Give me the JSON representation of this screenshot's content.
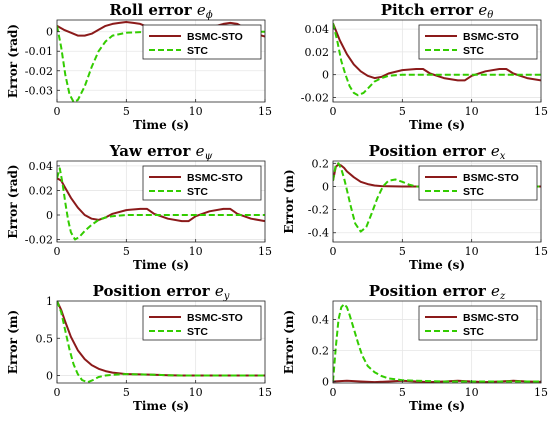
{
  "colors": {
    "bsmc": "#8b1a1a",
    "stc": "#33cc00",
    "grid": "#e6e6e6",
    "axis": "#262626"
  },
  "chart_data": [
    {
      "type": "line",
      "title": "Roll error",
      "title_sub": "e",
      "title_subscript": "ϕ",
      "xlabel": "Time (s)",
      "ylabel": "Error (rad)",
      "xlim": [
        0,
        15
      ],
      "ylim": [
        -0.036,
        0.006
      ],
      "xticks": [
        0,
        5,
        10,
        15
      ],
      "yticks": [
        0,
        -0.01,
        -0.02,
        -0.03
      ],
      "ytick_labels": [
        "0",
        "-0.01",
        "-0.02",
        "-0.03"
      ],
      "grid": true,
      "legend_position": "top-right",
      "series": [
        {
          "name": "BSMC-STO",
          "style": "solid",
          "x": [
            0,
            0.5,
            1,
            1.5,
            2,
            2.5,
            3,
            3.5,
            4,
            4.5,
            5,
            5.5,
            6,
            6.5,
            7,
            7.5,
            8,
            8.5,
            9,
            9.5,
            10,
            10.5,
            11,
            11.5,
            12,
            12.5,
            13,
            13.5,
            14,
            14.5,
            15
          ],
          "values": [
            0.003,
            0.001,
            -0.0005,
            -0.002,
            -0.002,
            -0.001,
            0.001,
            0.003,
            0.004,
            0.0045,
            0.005,
            0.0045,
            0.004,
            0.0025,
            0.001,
            -0.0005,
            -0.0015,
            -0.002,
            -0.0025,
            -0.0025,
            -0.002,
            0,
            0.002,
            0.003,
            0.004,
            0.0045,
            0.004,
            0.002,
            0,
            -0.0015,
            -0.0025
          ]
        },
        {
          "name": "STC",
          "style": "dashed",
          "x": [
            0,
            0.3,
            0.6,
            0.9,
            1.2,
            1.5,
            2,
            2.5,
            3,
            3.5,
            4,
            5,
            6,
            7,
            8,
            9,
            10,
            11,
            12,
            13,
            14,
            15
          ],
          "values": [
            0.003,
            -0.008,
            -0.022,
            -0.032,
            -0.036,
            -0.035,
            -0.028,
            -0.018,
            -0.01,
            -0.005,
            -0.002,
            -0.0005,
            -0.0002,
            0,
            0,
            0,
            0,
            0,
            0,
            0,
            0,
            0
          ]
        }
      ]
    },
    {
      "type": "line",
      "title": "Pitch error",
      "title_sub": "e",
      "title_subscript": "θ",
      "xlabel": "Time (s)",
      "ylabel": "",
      "xlim": [
        0,
        15
      ],
      "ylim": [
        -0.024,
        0.048
      ],
      "xticks": [
        0,
        5,
        10,
        15
      ],
      "yticks": [
        0.04,
        0.02,
        0,
        -0.02
      ],
      "ytick_labels": [
        "0.04",
        "0.02",
        "0",
        "-0.02"
      ],
      "grid": true,
      "legend_position": "top-right",
      "series": [
        {
          "name": "BSMC-STO",
          "style": "solid",
          "x": [
            0,
            0.5,
            1,
            1.5,
            2,
            2.5,
            3,
            3.5,
            4,
            5,
            6,
            6.5,
            7,
            8,
            9,
            9.5,
            10,
            11,
            12,
            12.5,
            13,
            14,
            15
          ],
          "values": [
            0.045,
            0.03,
            0.018,
            0.009,
            0.003,
            -0.001,
            -0.003,
            -0.002,
            0.001,
            0.004,
            0.005,
            0.005,
            0.001,
            -0.003,
            -0.005,
            -0.005,
            -0.001,
            0.003,
            0.005,
            0.005,
            0.001,
            -0.003,
            -0.005
          ]
        },
        {
          "name": "STC",
          "style": "dashed",
          "x": [
            0,
            0.3,
            0.6,
            0.9,
            1.2,
            1.5,
            1.8,
            2.2,
            2.6,
            3,
            3.5,
            4,
            5,
            6,
            7,
            8,
            9,
            10,
            11,
            12,
            13,
            14,
            15
          ],
          "values": [
            0.045,
            0.03,
            0.012,
            0,
            -0.01,
            -0.016,
            -0.018,
            -0.016,
            -0.011,
            -0.006,
            -0.003,
            -0.001,
            0,
            0,
            0,
            0,
            0,
            0,
            0,
            0,
            0,
            0,
            0
          ]
        }
      ]
    },
    {
      "type": "line",
      "title": "Yaw error",
      "title_sub": "e",
      "title_subscript": "ψ",
      "xlabel": "Time (s)",
      "ylabel": "Error (rad)",
      "xlim": [
        0,
        15
      ],
      "ylim": [
        -0.022,
        0.044
      ],
      "xticks": [
        0,
        5,
        10,
        15
      ],
      "yticks": [
        0.04,
        0.02,
        0,
        -0.02
      ],
      "ytick_labels": [
        "0.04",
        "0.02",
        "0",
        "-0.02"
      ],
      "grid": true,
      "legend_position": "top-right",
      "series": [
        {
          "name": "BSMC-STO",
          "style": "solid",
          "x": [
            0,
            0.3,
            0.6,
            1,
            1.5,
            2,
            2.5,
            3,
            3.5,
            4,
            5,
            6,
            6.5,
            7,
            8,
            9,
            9.5,
            10,
            11,
            12,
            12.5,
            13,
            14,
            15
          ],
          "values": [
            0.03,
            0.028,
            0.022,
            0.014,
            0.006,
            0,
            -0.003,
            -0.004,
            -0.002,
            0.001,
            0.004,
            0.005,
            0.005,
            0.001,
            -0.003,
            -0.005,
            -0.005,
            -0.001,
            0.003,
            0.005,
            0.005,
            0.001,
            -0.003,
            -0.005
          ]
        },
        {
          "name": "STC",
          "style": "dashed",
          "x": [
            0,
            0.2,
            0.4,
            0.6,
            0.8,
            1,
            1.3,
            1.6,
            2,
            2.5,
            3,
            3.5,
            4,
            5,
            6,
            7,
            8,
            9,
            10,
            11,
            12,
            13,
            14,
            15
          ],
          "values": [
            0.03,
            0.038,
            0.026,
            0.01,
            -0.004,
            -0.014,
            -0.02,
            -0.018,
            -0.013,
            -0.008,
            -0.004,
            -0.002,
            -0.001,
            0,
            0,
            0,
            0,
            0,
            0,
            0,
            0,
            0,
            0,
            0
          ]
        }
      ]
    },
    {
      "type": "line",
      "title": "Position error",
      "title_sub": "e",
      "title_subscript": "x",
      "xlabel": "Time (s)",
      "ylabel": "Error (m)",
      "xlim": [
        0,
        15
      ],
      "ylim": [
        -0.48,
        0.22
      ],
      "xticks": [
        0,
        5,
        10,
        15
      ],
      "yticks": [
        0.2,
        0,
        -0.2,
        -0.4
      ],
      "ytick_labels": [
        "0.2",
        "0",
        "-0.2",
        "-0.4"
      ],
      "grid": true,
      "legend_position": "top-right",
      "series": [
        {
          "name": "BSMC-STO",
          "style": "solid",
          "x": [
            0,
            0.2,
            0.4,
            0.6,
            0.8,
            1,
            1.5,
            2,
            2.5,
            3,
            3.5,
            4,
            5,
            6,
            7,
            8,
            9,
            10,
            11,
            12,
            13,
            14,
            15
          ],
          "values": [
            0.05,
            0.17,
            0.19,
            0.18,
            0.16,
            0.13,
            0.08,
            0.04,
            0.02,
            0.008,
            0.003,
            0.001,
            0,
            0,
            0,
            0,
            0,
            0,
            0,
            0,
            0,
            0,
            0
          ]
        },
        {
          "name": "STC",
          "style": "dashed",
          "x": [
            0,
            0.2,
            0.4,
            0.6,
            0.8,
            1,
            1.3,
            1.6,
            2,
            2.4,
            2.8,
            3.2,
            3.6,
            4,
            4.5,
            5,
            5.5,
            6,
            7,
            8,
            9,
            10,
            11,
            12,
            13,
            14,
            15
          ],
          "values": [
            0.05,
            0.19,
            0.2,
            0.15,
            0.07,
            -0.03,
            -0.18,
            -0.32,
            -0.39,
            -0.35,
            -0.23,
            -0.1,
            0,
            0.05,
            0.06,
            0.04,
            0.015,
            0,
            -0.005,
            0,
            0,
            0,
            0,
            0,
            0,
            0,
            0
          ]
        }
      ]
    },
    {
      "type": "line",
      "title": "Position error",
      "title_sub": "e",
      "title_subscript": "y",
      "xlabel": "Time (s)",
      "ylabel": "Error (m)",
      "xlim": [
        0,
        15
      ],
      "ylim": [
        -0.1,
        1.0
      ],
      "xticks": [
        0,
        5,
        10,
        15
      ],
      "yticks": [
        1,
        0.5,
        0
      ],
      "ytick_labels": [
        "1",
        "0.5",
        "0"
      ],
      "grid": true,
      "legend_position": "top-right",
      "series": [
        {
          "name": "BSMC-STO",
          "style": "solid",
          "x": [
            0,
            0.3,
            0.6,
            1,
            1.5,
            2,
            2.5,
            3,
            3.5,
            4,
            5,
            6,
            7,
            8,
            9,
            10,
            11,
            12,
            13,
            14,
            15
          ],
          "values": [
            1.0,
            0.88,
            0.72,
            0.52,
            0.34,
            0.22,
            0.14,
            0.09,
            0.06,
            0.04,
            0.02,
            0.015,
            0.01,
            0.005,
            0,
            0,
            0,
            0,
            0,
            0,
            0
          ]
        },
        {
          "name": "STC",
          "style": "dashed",
          "x": [
            0,
            0.3,
            0.6,
            0.9,
            1.2,
            1.5,
            1.8,
            2.2,
            2.6,
            3,
            3.5,
            4,
            5,
            6,
            7,
            8,
            9,
            10,
            11,
            12,
            13,
            14,
            15
          ],
          "values": [
            1.0,
            0.85,
            0.6,
            0.35,
            0.15,
            0.02,
            -0.06,
            -0.09,
            -0.06,
            -0.02,
            0,
            0.01,
            0.02,
            0.015,
            0.01,
            0.005,
            0,
            0,
            0,
            0,
            0,
            0,
            0
          ]
        }
      ]
    },
    {
      "type": "line",
      "title": "Position error",
      "title_sub": "e",
      "title_subscript": "z",
      "xlabel": "Time (s)",
      "ylabel": "Error (m)",
      "xlim": [
        0,
        15
      ],
      "ylim": [
        -0.01,
        0.52
      ],
      "xticks": [
        0,
        5,
        10,
        15
      ],
      "yticks": [
        0.4,
        0.2,
        0
      ],
      "ytick_labels": [
        "0.4",
        "0.2",
        "0"
      ],
      "grid": true,
      "legend_position": "top-right",
      "series": [
        {
          "name": "BSMC-STO",
          "style": "solid",
          "x": [
            0,
            1,
            2,
            3,
            4,
            5,
            6,
            7,
            8,
            9,
            10,
            11,
            12,
            13,
            14,
            15
          ],
          "values": [
            0,
            0.005,
            0,
            -0.004,
            0,
            0.004,
            0,
            -0.004,
            0,
            0.004,
            0,
            -0.004,
            0,
            0.004,
            0,
            -0.003
          ]
        },
        {
          "name": "STC",
          "style": "dashed",
          "x": [
            0,
            0.2,
            0.4,
            0.6,
            0.8,
            1,
            1.2,
            1.5,
            1.8,
            2.1,
            2.5,
            3,
            3.5,
            4,
            5,
            6,
            7,
            8,
            9,
            10,
            11,
            12,
            13,
            14,
            15
          ],
          "values": [
            0,
            0.22,
            0.4,
            0.48,
            0.5,
            0.48,
            0.43,
            0.34,
            0.25,
            0.17,
            0.1,
            0.06,
            0.035,
            0.02,
            0.008,
            0.004,
            0.002,
            0,
            0,
            0,
            0,
            0,
            0,
            0,
            0
          ]
        }
      ]
    }
  ]
}
